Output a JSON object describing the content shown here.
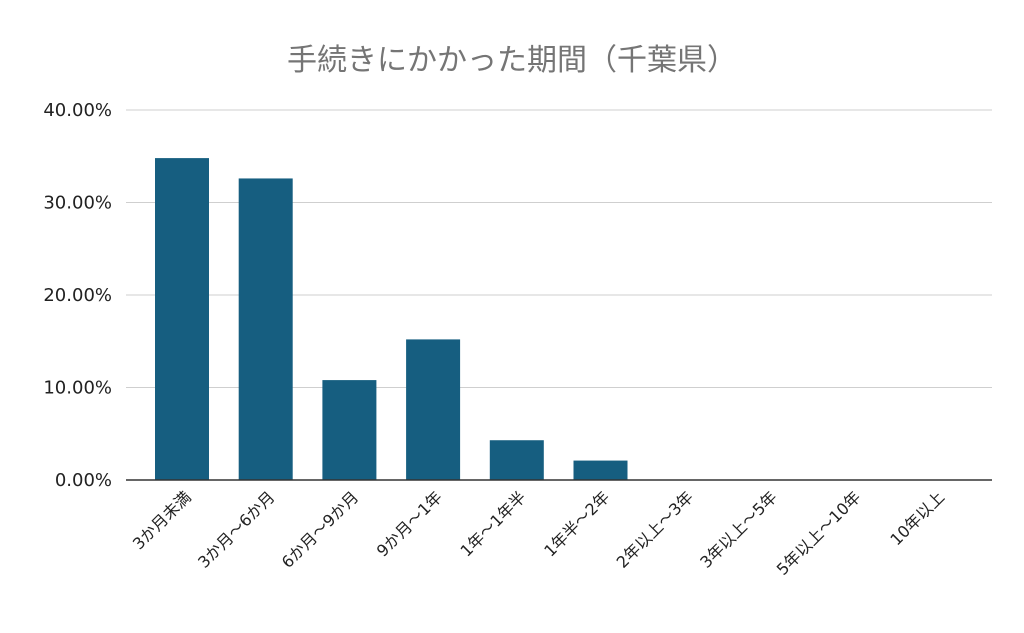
{
  "chart_data": {
    "type": "bar",
    "title": "手続きにかかった期間（千葉県）",
    "xlabel": "",
    "ylabel": "",
    "categories": [
      "3か月未満",
      "3か月～6か月",
      "6か月～9か月",
      "9か月～1年",
      "1年～1年半",
      "1年半～2年",
      "2年以上～3年",
      "3年以上～5年",
      "5年以上～10年",
      "10年以上"
    ],
    "values": [
      34.8,
      32.6,
      10.8,
      15.2,
      4.3,
      2.1,
      0,
      0,
      0,
      0
    ],
    "ylim": [
      0,
      40
    ],
    "y_ticks": [
      "0.00%",
      "10.00%",
      "20.00%",
      "30.00%",
      "40.00%"
    ],
    "y_tick_values": [
      0,
      10,
      20,
      30,
      40
    ],
    "grid": true,
    "legend": "none",
    "bar_color": "#165e80"
  }
}
